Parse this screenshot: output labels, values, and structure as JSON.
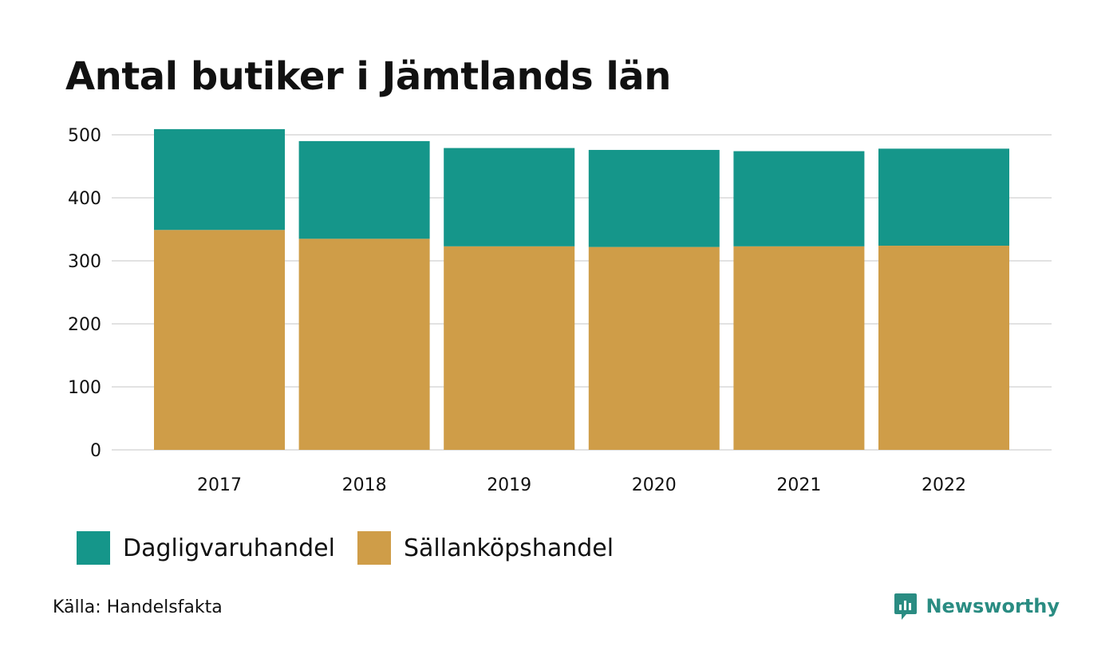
{
  "colors": {
    "dagligvaruhandel": "#15968A",
    "sallankopshandel": "#CF9D48",
    "grid": "#e2e2e2",
    "brand": "#2A8C82"
  },
  "chart_data": {
    "type": "bar",
    "stacked": true,
    "title": "Antal butiker i Jämtlands län",
    "categories": [
      "2017",
      "2018",
      "2019",
      "2020",
      "2021",
      "2022"
    ],
    "series": [
      {
        "name": "Sällanköpshandel",
        "values": [
          349,
          335,
          323,
          322,
          323,
          324
        ]
      },
      {
        "name": "Dagligvaruhandel",
        "values": [
          160,
          155,
          156,
          154,
          151,
          154
        ]
      }
    ],
    "yticks": [
      0,
      100,
      200,
      300,
      400,
      500
    ],
    "ylim": [
      0,
      520
    ],
    "grid": true,
    "legend_position": "bottom-left"
  },
  "legend": {
    "items": [
      {
        "label": "Dagligvaruhandel"
      },
      {
        "label": "Sällanköpshandel"
      }
    ]
  },
  "footer": {
    "source": "Källa: Handelsfakta",
    "brand": "Newsworthy",
    "brand_icon": "newsworthy-logo-icon"
  }
}
